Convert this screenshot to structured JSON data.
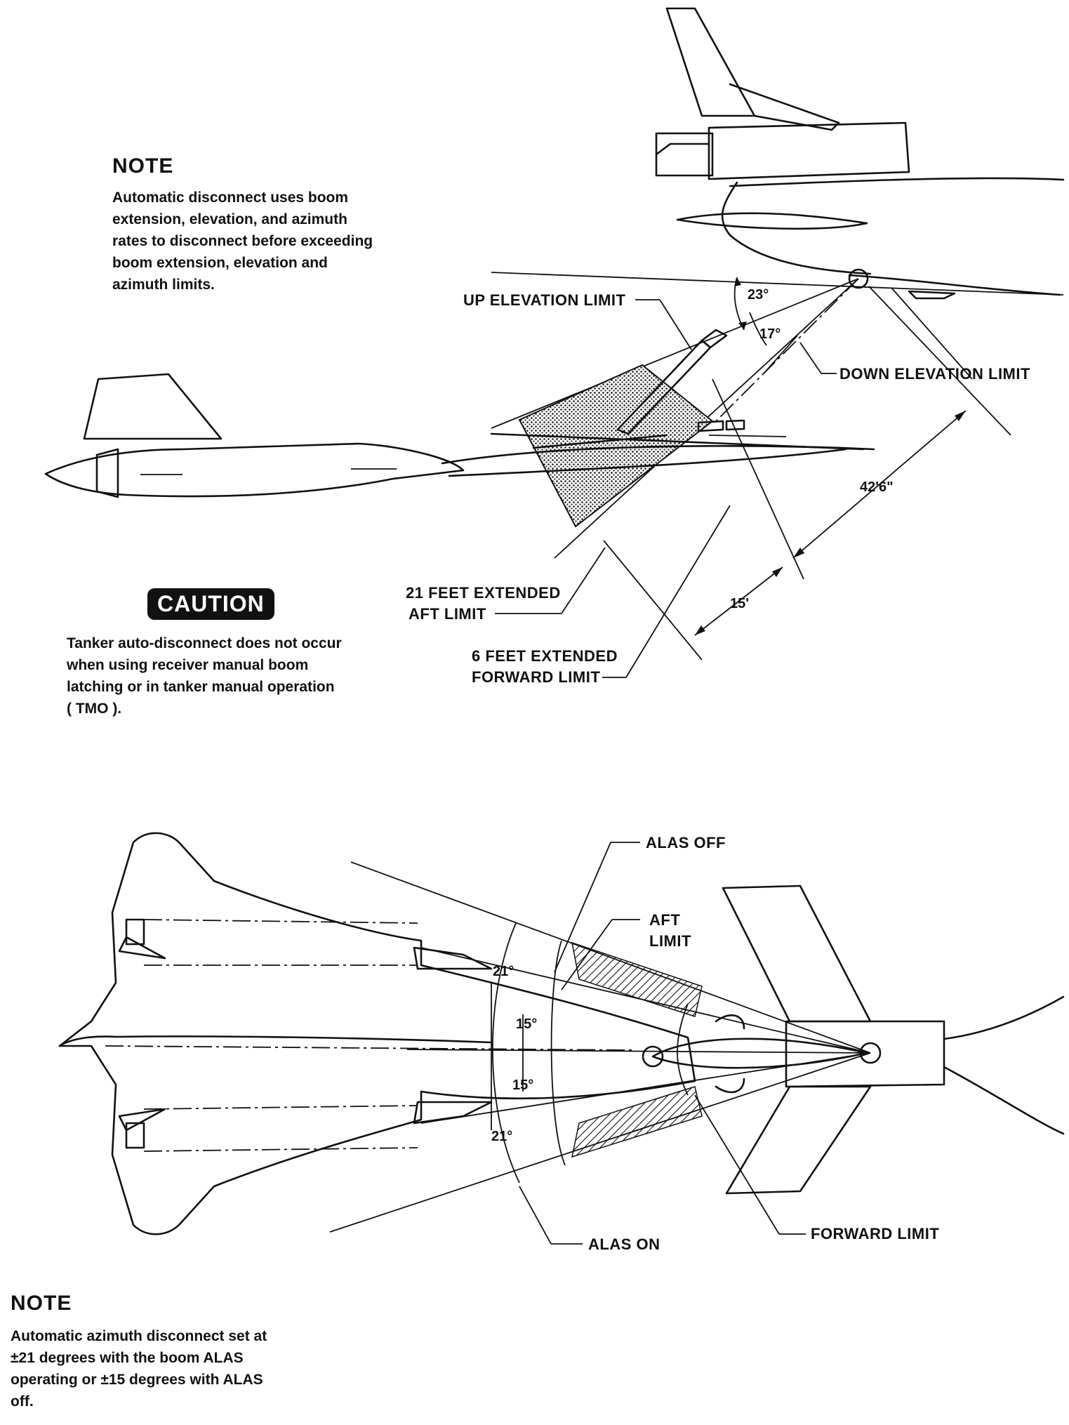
{
  "note_top": {
    "heading": "NOTE",
    "lines": [
      "Automatic disconnect uses boom",
      "extension, elevation, and azimuth",
      "rates to disconnect before exceeding",
      "boom extension, elevation and",
      "azimuth limits."
    ]
  },
  "caution": {
    "badge": "CAUTION",
    "lines": [
      "Tanker auto-disconnect does not occur",
      "when using receiver manual boom",
      "latching or in tanker manual operation",
      "( TMO )."
    ]
  },
  "side_view": {
    "up_elevation_limit": "UP ELEVATION LIMIT",
    "down_elevation_limit": "DOWN ELEVATION LIMIT",
    "angle_up": "23°",
    "angle_down": "17°",
    "length_total": "42'6\"",
    "length_extended": "15'",
    "aft_limit_line1": "21 FEET EXTENDED",
    "aft_limit_line2": "AFT LIMIT",
    "fwd_limit_line1": "6 FEET EXTENDED",
    "fwd_limit_line2": "FORWARD LIMIT"
  },
  "top_view": {
    "alas_off": "ALAS OFF",
    "aft_limit_line1": "AFT",
    "aft_limit_line2": "LIMIT",
    "alas_on": "ALAS ON",
    "forward_limit": "FORWARD LIMIT",
    "angle_21_upper": "21°",
    "angle_15_upper": "15°",
    "angle_15_lower": "15°",
    "angle_21_lower": "21°"
  },
  "note_bottom": {
    "heading": "NOTE",
    "lines": [
      "Automatic azimuth disconnect set at",
      "±21 degrees with the boom ALAS",
      "operating or ±15 degrees with ALAS",
      "off."
    ]
  }
}
